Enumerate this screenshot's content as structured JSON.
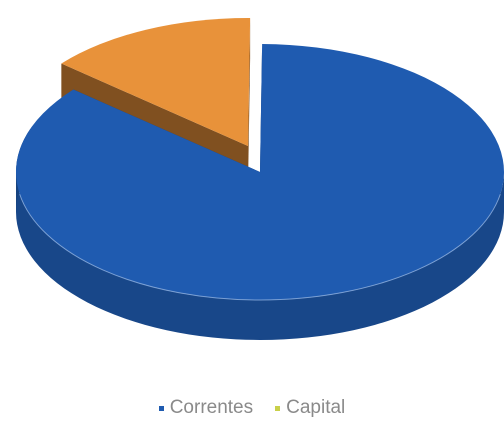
{
  "chart_data": {
    "type": "pie",
    "style": "3d-exploded",
    "title": "",
    "categories": [
      "Correntes",
      "Capital"
    ],
    "values": [
      86,
      14
    ],
    "colors": [
      "#1f5bb0",
      "#e8923a"
    ],
    "legend": {
      "placement": "bottom",
      "entries": [
        {
          "label": "Correntes",
          "color": "#1f5bb0"
        },
        {
          "label": "Capital",
          "color": "#c9d04a"
        }
      ]
    }
  }
}
